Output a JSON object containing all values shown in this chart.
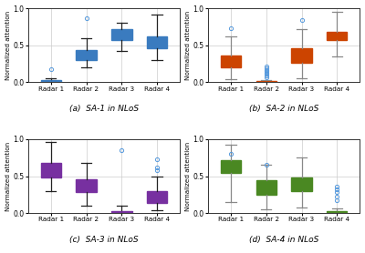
{
  "subplots": [
    {
      "title": "(a)  SA-1 in NLoS",
      "box_color": "#3a7bbf",
      "face_color": "#aac8e8",
      "whisker_color": "#222222",
      "boxes": [
        {
          "med": 0.02,
          "q1": 0.005,
          "q3": 0.03,
          "whislo": 0.0,
          "whishi": 0.06,
          "fliers": [
            0.18
          ]
        },
        {
          "med": 0.38,
          "q1": 0.3,
          "q3": 0.44,
          "whislo": 0.2,
          "whishi": 0.6,
          "fliers": [
            0.87
          ]
        },
        {
          "med": 0.62,
          "q1": 0.57,
          "q3": 0.72,
          "whislo": 0.42,
          "whishi": 0.8,
          "fliers": []
        },
        {
          "med": 0.53,
          "q1": 0.46,
          "q3": 0.62,
          "whislo": 0.3,
          "whishi": 0.92,
          "fliers": []
        }
      ]
    },
    {
      "title": "(b)  SA-2 in NLoS",
      "box_color": "#cc4400",
      "face_color": "#f0b090",
      "whisker_color": "#888888",
      "boxes": [
        {
          "med": 0.28,
          "q1": 0.2,
          "q3": 0.36,
          "whislo": 0.04,
          "whishi": 0.62,
          "fliers": [
            0.73
          ]
        },
        {
          "med": 0.01,
          "q1": 0.005,
          "q3": 0.015,
          "whislo": 0.0,
          "whishi": 0.03,
          "fliers": [
            0.07,
            0.09,
            0.11,
            0.13,
            0.15,
            0.17,
            0.19,
            0.21
          ]
        },
        {
          "med": 0.36,
          "q1": 0.26,
          "q3": 0.46,
          "whislo": 0.05,
          "whishi": 0.72,
          "fliers": [
            0.84
          ]
        },
        {
          "med": 0.62,
          "q1": 0.57,
          "q3": 0.68,
          "whislo": 0.35,
          "whishi": 0.95,
          "fliers": []
        }
      ]
    },
    {
      "title": "(c)  SA-3 in NLoS",
      "box_color": "#7730a0",
      "face_color": "#cc99dd",
      "whisker_color": "#222222",
      "boxes": [
        {
          "med": 0.58,
          "q1": 0.48,
          "q3": 0.68,
          "whislo": 0.3,
          "whishi": 0.96,
          "fliers": []
        },
        {
          "med": 0.38,
          "q1": 0.28,
          "q3": 0.46,
          "whislo": 0.1,
          "whishi": 0.68,
          "fliers": []
        },
        {
          "med": 0.02,
          "q1": 0.01,
          "q3": 0.03,
          "whislo": 0.0,
          "whishi": 0.1,
          "fliers": [
            0.85
          ]
        },
        {
          "med": 0.22,
          "q1": 0.14,
          "q3": 0.3,
          "whislo": 0.04,
          "whishi": 0.5,
          "fliers": [
            0.58,
            0.62,
            0.73
          ]
        }
      ]
    },
    {
      "title": "(d)  SA-4 in NLoS",
      "box_color": "#4a8822",
      "face_color": "#a8cc70",
      "whisker_color": "#888888",
      "boxes": [
        {
          "med": 0.64,
          "q1": 0.55,
          "q3": 0.72,
          "whislo": 0.15,
          "whishi": 0.92,
          "fliers": [
            0.8
          ]
        },
        {
          "med": 0.34,
          "q1": 0.25,
          "q3": 0.44,
          "whislo": 0.05,
          "whishi": 0.65,
          "fliers": [
            0.66
          ]
        },
        {
          "med": 0.4,
          "q1": 0.3,
          "q3": 0.48,
          "whislo": 0.08,
          "whishi": 0.75,
          "fliers": []
        },
        {
          "med": 0.02,
          "q1": 0.01,
          "q3": 0.03,
          "whislo": 0.0,
          "whishi": 0.06,
          "fliers": [
            0.18,
            0.22,
            0.28,
            0.32,
            0.36
          ]
        }
      ]
    }
  ],
  "xlabels": [
    "Radar 1",
    "Radar 2",
    "Radar 3",
    "Radar 4"
  ],
  "ylabel": "Normalized attention",
  "ylim": [
    0,
    1
  ],
  "yticks": [
    0,
    0.5,
    1
  ],
  "flier_color": "#5599dd"
}
